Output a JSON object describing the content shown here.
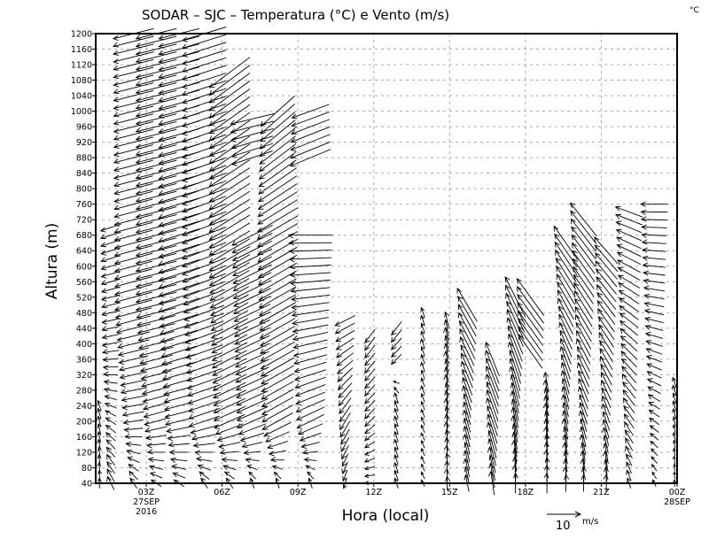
{
  "chart_data": {
    "type": "vector",
    "title": "SODAR – SJC – Temperatura (°C) e Vento (m/s)",
    "corner_unit": "°C",
    "xlabel": "Hora (local)",
    "ylabel": "Altura (m)",
    "xlim_hours": [
      1,
      24
    ],
    "ylim": [
      40,
      1200
    ],
    "yticks": [
      40,
      80,
      120,
      160,
      200,
      240,
      280,
      320,
      360,
      400,
      440,
      480,
      520,
      560,
      600,
      640,
      680,
      720,
      760,
      800,
      840,
      880,
      920,
      960,
      1000,
      1040,
      1080,
      1120,
      1160,
      1200
    ],
    "xticks": [
      {
        "hour": 3,
        "label": "03Z",
        "sub1": "27SEP",
        "sub2": "2016"
      },
      {
        "hour": 6,
        "label": "06Z"
      },
      {
        "hour": 9,
        "label": "09Z"
      },
      {
        "hour": 12,
        "label": "12Z"
      },
      {
        "hour": 15,
        "label": "15Z"
      },
      {
        "hour": 18,
        "label": "18Z"
      },
      {
        "hour": 21,
        "label": "21Z"
      },
      {
        "hour": 24,
        "label": "00Z",
        "sub1": "28SEP"
      }
    ],
    "grid": true,
    "reference_vector": {
      "value": 10,
      "label": "10",
      "unit": "m/s"
    },
    "level_step_m": 20,
    "columns": [
      {
        "hour": 1.15,
        "top": 240,
        "profile": [
          [
            40,
            0,
            3
          ],
          [
            240,
            -1,
            3
          ]
        ]
      },
      {
        "hour": 1.6,
        "top": 700,
        "profile": [
          [
            40,
            -2,
            4
          ],
          [
            200,
            -3,
            2
          ],
          [
            400,
            -5,
            -1
          ],
          [
            700,
            -6,
            -2
          ]
        ]
      },
      {
        "hour": 2.5,
        "top": 1200,
        "profile": [
          [
            40,
            -2,
            3
          ],
          [
            200,
            -6,
            -1
          ],
          [
            500,
            -11,
            -3
          ],
          [
            1200,
            -12,
            -3
          ]
        ]
      },
      {
        "hour": 3.4,
        "top": 1200,
        "profile": [
          [
            40,
            -3,
            2
          ],
          [
            200,
            -7,
            -2
          ],
          [
            500,
            -12,
            -3
          ],
          [
            1200,
            -12,
            -3
          ]
        ]
      },
      {
        "hour": 4.3,
        "top": 1200,
        "profile": [
          [
            40,
            -3,
            2
          ],
          [
            200,
            -8,
            -2
          ],
          [
            500,
            -12,
            -4
          ],
          [
            1200,
            -12,
            -3
          ]
        ]
      },
      {
        "hour": 5.3,
        "top": 1200,
        "profile": [
          [
            40,
            -2,
            3
          ],
          [
            200,
            -9,
            -3
          ],
          [
            600,
            -13,
            -5
          ],
          [
            1200,
            -13,
            -4
          ]
        ]
      },
      {
        "hour": 6.3,
        "top": 1100,
        "profile": [
          [
            40,
            -2,
            3
          ],
          [
            200,
            -9,
            -4
          ],
          [
            600,
            -12,
            -7
          ],
          [
            1100,
            -12,
            -9
          ]
        ]
      },
      {
        "hour": 7.2,
        "top": 990,
        "gap": [
          700,
          870
        ],
        "profile": [
          [
            40,
            -1,
            3
          ],
          [
            200,
            -9,
            -4
          ],
          [
            680,
            -12,
            -6
          ],
          [
            880,
            -12,
            -4
          ],
          [
            990,
            -13,
            -3
          ]
        ]
      },
      {
        "hour": 8.2,
        "top": 1000,
        "profile": [
          [
            40,
            -1,
            3
          ],
          [
            200,
            -9,
            -5
          ],
          [
            700,
            -12,
            -7
          ],
          [
            1000,
            -10,
            -9
          ]
        ]
      },
      {
        "hour": 9.5,
        "top": 1000,
        "gap": [
          700,
          860
        ],
        "profile": [
          [
            40,
            -1,
            3
          ],
          [
            200,
            -8,
            -4
          ],
          [
            680,
            -13,
            0
          ],
          [
            880,
            -12,
            -5
          ],
          [
            1000,
            -11,
            -4
          ]
        ]
      },
      {
        "hour": 10.87,
        "top": 460,
        "profile": [
          [
            40,
            -1,
            -3
          ],
          [
            200,
            -3,
            -5
          ],
          [
            460,
            -6,
            -3
          ]
        ]
      },
      {
        "hour": 11.85,
        "top": 420,
        "profile": [
          [
            40,
            -3,
            0
          ],
          [
            200,
            -3,
            -3
          ],
          [
            420,
            -3,
            -4
          ]
        ]
      },
      {
        "hour": 12.9,
        "top": 440,
        "gap": [
          310,
          340
        ],
        "profile": [
          [
            40,
            -1,
            3
          ],
          [
            260,
            -1,
            3
          ],
          [
            360,
            -3,
            -3
          ],
          [
            440,
            -3,
            -4
          ]
        ]
      },
      {
        "hour": 13.95,
        "top": 480,
        "profile": [
          [
            40,
            -1,
            2
          ],
          [
            480,
            -1,
            3
          ]
        ]
      },
      {
        "hour": 14.9,
        "top": 460,
        "profile": [
          [
            40,
            0,
            4
          ],
          [
            460,
            -1,
            5
          ]
        ]
      },
      {
        "hour": 15.7,
        "top": 510,
        "profile": [
          [
            40,
            -1,
            5
          ],
          [
            240,
            -2,
            7
          ],
          [
            510,
            -6,
            10
          ]
        ]
      },
      {
        "hour": 16.7,
        "top": 360,
        "profile": [
          [
            40,
            -1,
            7
          ],
          [
            200,
            -3,
            9
          ],
          [
            360,
            -4,
            10
          ]
        ]
      },
      {
        "hour": 17.6,
        "top": 520,
        "profile": [
          [
            40,
            0,
            6
          ],
          [
            260,
            -2,
            9
          ],
          [
            520,
            -6,
            12
          ]
        ]
      },
      {
        "hour": 18.2,
        "top": 520,
        "profile": [
          [
            380,
            -7,
            10
          ],
          [
            520,
            -8,
            11
          ]
        ]
      },
      {
        "hour": 18.85,
        "top": 300,
        "profile": [
          [
            40,
            0,
            6
          ],
          [
            300,
            -1,
            6
          ]
        ]
      },
      {
        "hour": 19.6,
        "top": 660,
        "profile": [
          [
            40,
            0,
            5
          ],
          [
            300,
            -2,
            7
          ],
          [
            660,
            -7,
            10
          ]
        ]
      },
      {
        "hour": 20.3,
        "top": 730,
        "profile": [
          [
            40,
            0,
            5
          ],
          [
            300,
            -3,
            7
          ],
          [
            730,
            -8,
            10
          ]
        ]
      },
      {
        "hour": 21.2,
        "top": 640,
        "profile": [
          [
            40,
            0,
            5
          ],
          [
            300,
            -3,
            6
          ],
          [
            640,
            -7,
            8
          ]
        ]
      },
      {
        "hour": 22.1,
        "top": 740,
        "profile": [
          [
            40,
            -1,
            3
          ],
          [
            300,
            -4,
            5
          ],
          [
            740,
            -8,
            3
          ]
        ]
      },
      {
        "hour": 23.1,
        "top": 760,
        "profile": [
          [
            40,
            -1,
            2
          ],
          [
            300,
            -4,
            2
          ],
          [
            760,
            -8,
            0
          ]
        ]
      },
      {
        "hour": 23.9,
        "top": 300,
        "profile": [
          [
            40,
            0,
            2
          ],
          [
            300,
            -1,
            3
          ]
        ]
      }
    ]
  }
}
